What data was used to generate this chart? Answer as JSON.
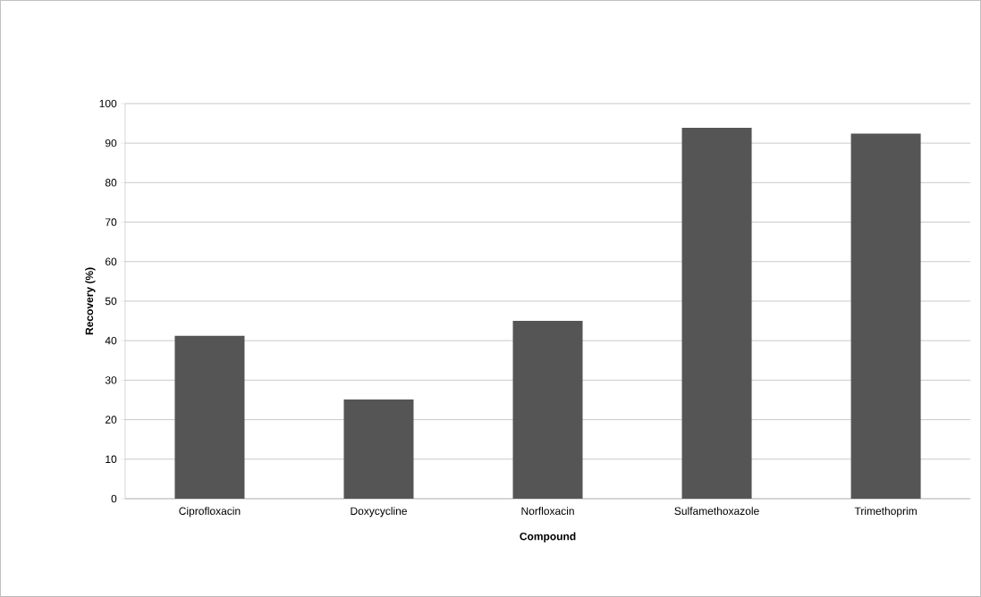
{
  "chart_data": {
    "type": "bar",
    "xlabel": "Compound",
    "ylabel": "Recovery (%)",
    "categories": [
      "Ciprofloxacin",
      "Doxycycline",
      "Norfloxacin",
      "Sulfamethoxazole",
      "Trimethoprim"
    ],
    "values": [
      41.2,
      25.1,
      45.0,
      93.9,
      92.4
    ],
    "color": "#555555",
    "ylim": [
      0,
      100
    ],
    "yticks": [
      0,
      10,
      20,
      30,
      40,
      50,
      60,
      70,
      80,
      90,
      100
    ],
    "grid": "y"
  }
}
